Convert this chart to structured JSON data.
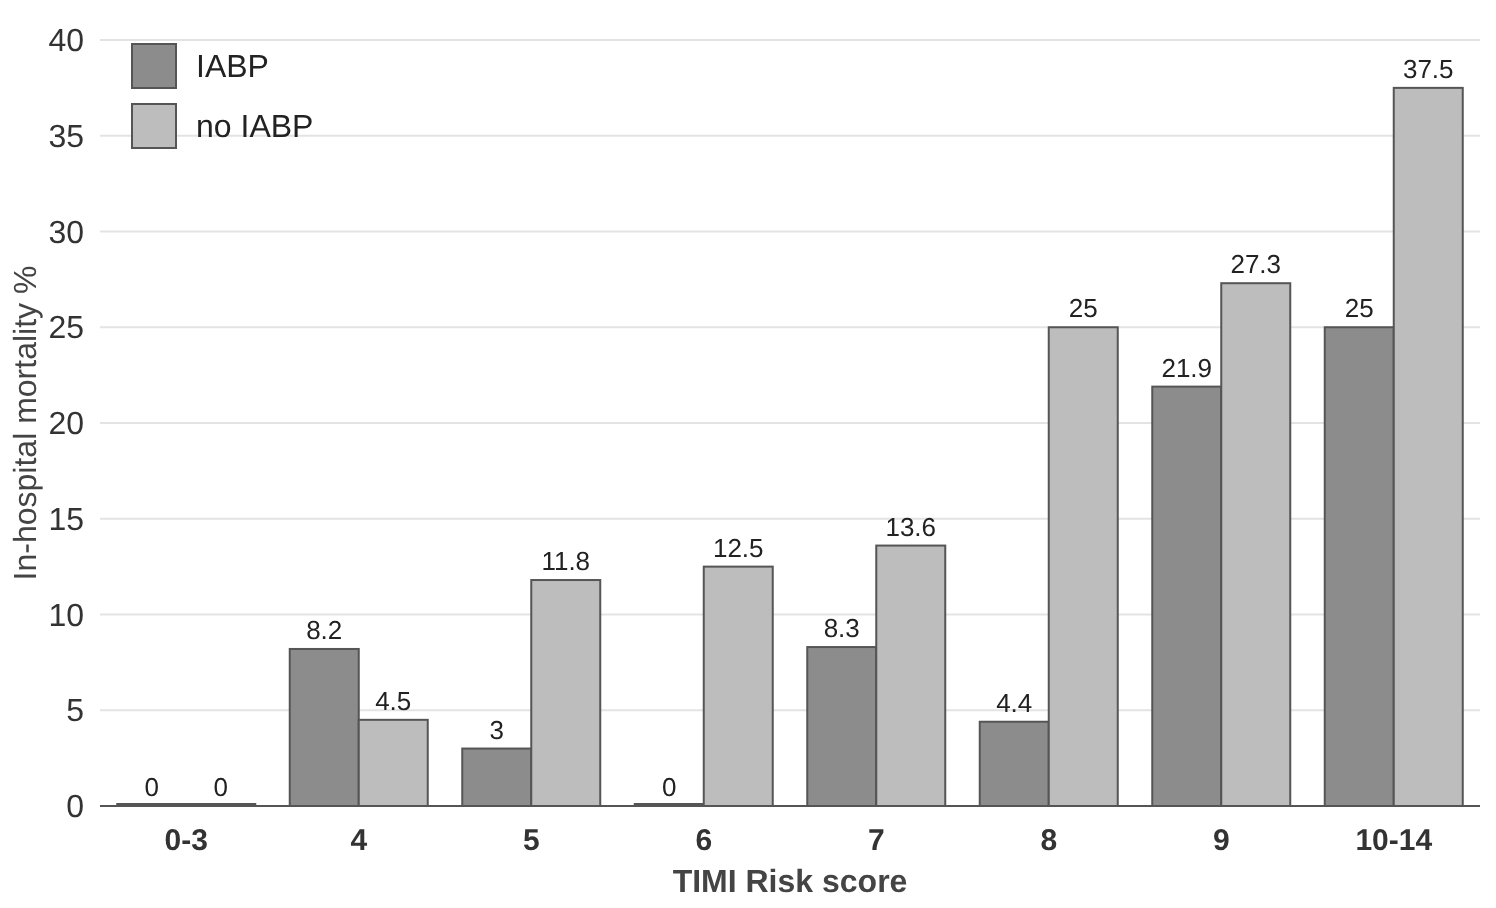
{
  "chart_data": {
    "type": "bar",
    "xlabel": "TIMI Risk score",
    "ylabel": "In-hospital mortality %",
    "categories": [
      "0-3",
      "4",
      "5",
      "6",
      "7",
      "8",
      "9",
      "10-14"
    ],
    "series": [
      {
        "name": "IABP",
        "color": "#8c8c8c",
        "values": [
          0,
          8.2,
          3,
          0,
          8.3,
          4.4,
          21.9,
          25
        ]
      },
      {
        "name": "no IABP",
        "color": "#bdbdbd",
        "values": [
          0,
          4.5,
          11.8,
          12.5,
          13.6,
          25,
          27.3,
          37.5
        ]
      }
    ],
    "ylim": [
      0,
      40
    ],
    "yticks": [
      0,
      5,
      10,
      15,
      20,
      25,
      30,
      35,
      40
    ],
    "grid": "y",
    "legend": "top left",
    "data_labels": true
  }
}
